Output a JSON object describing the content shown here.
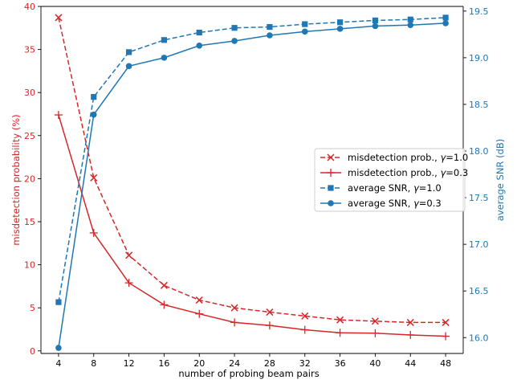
{
  "chart_data": {
    "type": "line",
    "x": [
      4,
      8,
      12,
      16,
      20,
      24,
      28,
      32,
      36,
      40,
      44,
      48
    ],
    "xlabel": "number of probing beam pairs",
    "xticks": [
      4,
      8,
      12,
      16,
      20,
      24,
      28,
      32,
      36,
      40,
      44,
      48
    ],
    "y_left": {
      "label": "misdetection probability (%)",
      "range": [
        -0.3,
        40
      ],
      "ticks": [
        0,
        5,
        10,
        15,
        20,
        25,
        30,
        35,
        40
      ],
      "color": "#d62728"
    },
    "y_right": {
      "label": "average SNR (dB)",
      "range": [
        15.83,
        19.55
      ],
      "ticks": [
        "16.0",
        "16.5",
        "17.0",
        "17.5",
        "18.0",
        "18.5",
        "19.0",
        "19.5"
      ],
      "color": "#1f77b4"
    },
    "series": [
      {
        "name_prefix": "misdetection prob., ",
        "gamma_label": "=1.0",
        "axis": "left",
        "color": "#d62728",
        "linestyle": "dashed",
        "marker": "x",
        "values": [
          38.7,
          20.1,
          11.1,
          7.6,
          5.9,
          5.0,
          4.5,
          4.05,
          3.6,
          3.45,
          3.3,
          3.3
        ]
      },
      {
        "name_prefix": "misdetection prob., ",
        "gamma_label": "=0.3",
        "axis": "left",
        "color": "#d62728",
        "linestyle": "solid",
        "marker": "plus",
        "values": [
          27.4,
          13.7,
          7.9,
          5.35,
          4.3,
          3.3,
          2.95,
          2.45,
          2.1,
          2.05,
          1.85,
          1.7
        ]
      },
      {
        "name_prefix": "average SNR, ",
        "gamma_label": "=1.0",
        "axis": "right",
        "color": "#1f77b4",
        "linestyle": "dashed",
        "marker": "square",
        "values": [
          16.38,
          18.58,
          19.06,
          19.19,
          19.27,
          19.32,
          19.33,
          19.36,
          19.38,
          19.4,
          19.41,
          19.43
        ]
      },
      {
        "name_prefix": "average SNR, ",
        "gamma_label": "=0.3",
        "axis": "right",
        "color": "#1f77b4",
        "linestyle": "solid",
        "marker": "circle",
        "values": [
          15.89,
          18.39,
          18.91,
          19.0,
          19.13,
          19.18,
          19.24,
          19.28,
          19.31,
          19.34,
          19.35,
          19.37
        ]
      }
    ],
    "legend_symbol": "γ",
    "legend_position": "center-right",
    "grid": false
  }
}
